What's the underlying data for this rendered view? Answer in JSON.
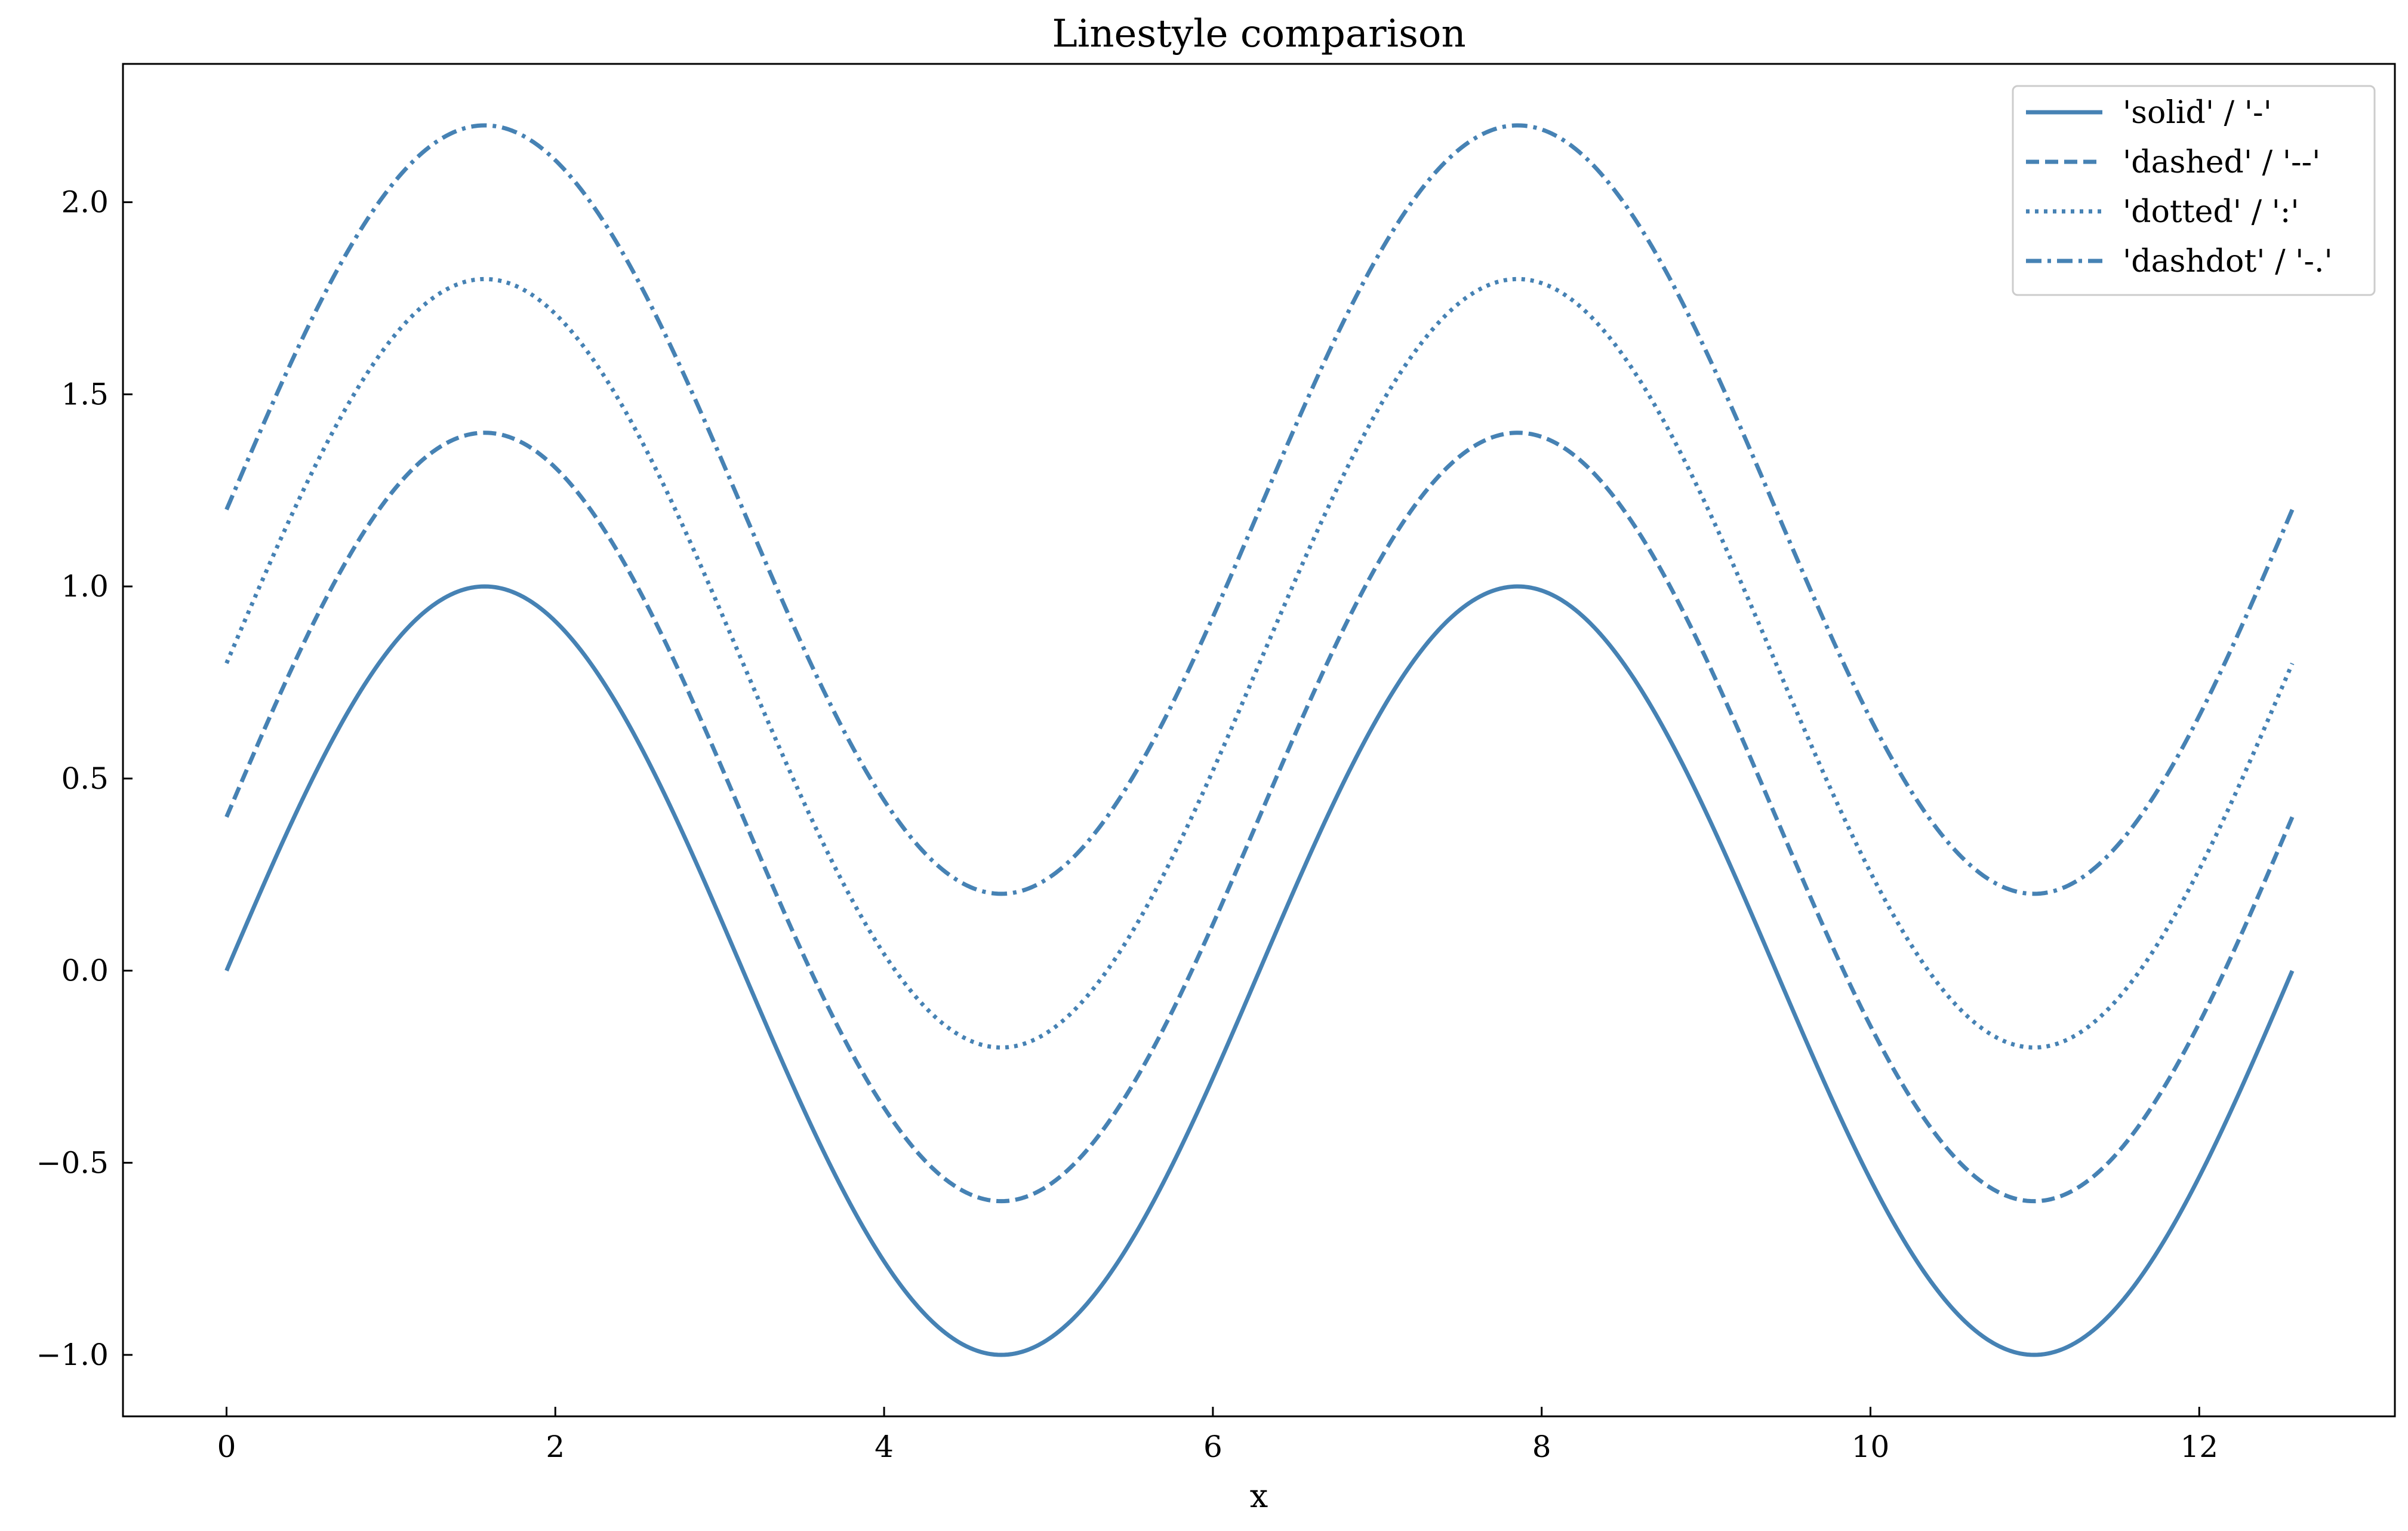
{
  "chart_data": {
    "type": "line",
    "title": "Linestyle comparison",
    "xlabel": "x",
    "ylabel": "",
    "xlim": [
      -0.63,
      13.19
    ],
    "ylim": [
      -1.16,
      2.36
    ],
    "xticks": [
      0,
      2,
      4,
      6,
      8,
      10,
      12
    ],
    "yticks": [
      -1.0,
      -0.5,
      0.0,
      0.5,
      1.0,
      1.5,
      2.0
    ],
    "ytick_labels": [
      "−1.0",
      "−0.5",
      "0.0",
      "0.5",
      "1.0",
      "1.5",
      "2.0"
    ],
    "grid": false,
    "legend_position": "top-right",
    "x_range": [
      0,
      12.566
    ],
    "function": "sin(x) + offset",
    "series": [
      {
        "name": "'solid' / '-'",
        "offset": 0.0,
        "linestyle": "solid",
        "color": "#4682b4"
      },
      {
        "name": "'dashed' / '--'",
        "offset": 0.4,
        "linestyle": "dashed",
        "color": "#4682b4"
      },
      {
        "name": "'dotted' / ':'",
        "offset": 0.8,
        "linestyle": "dotted",
        "color": "#4682b4"
      },
      {
        "name": "'dashdot' / '-.'",
        "offset": 1.2,
        "linestyle": "dashdot",
        "color": "#4682b4"
      }
    ]
  }
}
